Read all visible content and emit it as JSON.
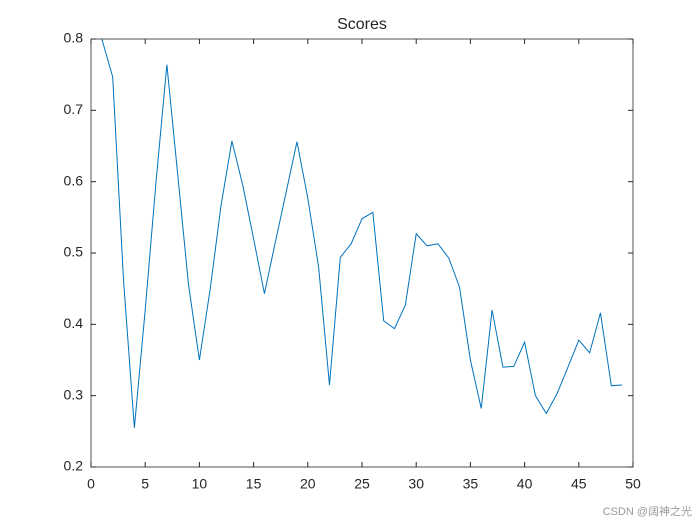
{
  "chart_data": {
    "type": "line",
    "title": "Scores",
    "x": [
      1,
      2,
      3,
      4,
      5,
      6,
      7,
      8,
      9,
      10,
      11,
      12,
      13,
      14,
      15,
      16,
      17,
      18,
      19,
      20,
      21,
      22,
      23,
      24,
      25,
      26,
      27,
      28,
      29,
      30,
      31,
      32,
      33,
      34,
      35,
      36,
      37,
      38,
      39,
      40,
      41,
      42,
      43,
      44,
      45,
      46,
      47,
      48,
      49
    ],
    "series": [
      {
        "color": "#0072bd",
        "values": [
          0.8,
          0.747,
          0.462,
          0.255,
          0.42,
          0.6,
          0.764,
          0.61,
          0.455,
          0.35,
          0.45,
          0.567,
          0.657,
          0.595,
          0.52,
          0.443,
          0.515,
          0.585,
          0.656,
          0.577,
          0.48,
          0.315,
          0.494,
          0.513,
          0.548,
          0.557,
          0.405,
          0.394,
          0.427,
          0.527,
          0.51,
          0.513,
          0.493,
          0.452,
          0.35,
          0.282,
          0.42,
          0.34,
          0.341,
          0.375,
          0.3,
          0.275,
          0.303,
          0.34,
          0.378,
          0.36,
          0.416,
          0.314,
          0.315
        ]
      }
    ],
    "xlim": [
      0,
      50
    ],
    "xticks": [
      0,
      5,
      10,
      15,
      20,
      25,
      30,
      35,
      40,
      45,
      50
    ],
    "ylim": [
      0.2,
      0.8
    ],
    "yticks": [
      0.2,
      0.3,
      0.4,
      0.5,
      0.6,
      0.7,
      0.8
    ],
    "watermark": "CSDN @阔神之光"
  }
}
